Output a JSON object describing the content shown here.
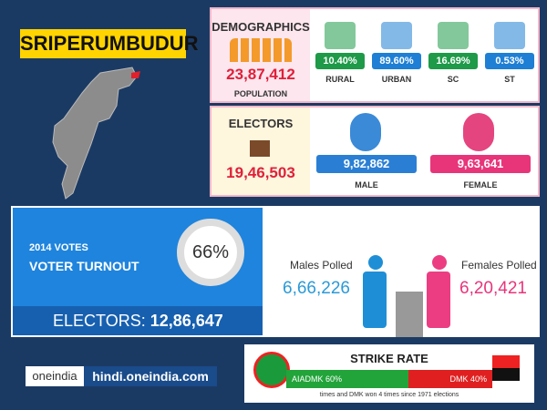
{
  "title": "SRIPERUMBUDUR",
  "demographics": {
    "title": "DEMOGRAPHICS",
    "population": "23,87,412",
    "population_label": "POPULATION",
    "items": [
      {
        "value": "10.40%",
        "label": "RURAL"
      },
      {
        "value": "89.60%",
        "label": "URBAN"
      },
      {
        "value": "16.69%",
        "label": "SC"
      },
      {
        "value": "0.53%",
        "label": "ST"
      }
    ]
  },
  "electors": {
    "title": "ELECTORS",
    "total": "19,46,503",
    "male": {
      "value": "9,82,862",
      "label": "MALE"
    },
    "female": {
      "value": "9,63,641",
      "label": "FEMALE"
    }
  },
  "votes": {
    "year_label": "2014 VOTES",
    "title": "VOTER TURNOUT",
    "turnout": "66%",
    "electors_label": "ELECTORS:",
    "electors_value": "12,86,647"
  },
  "polled": {
    "males_label": "Males Polled",
    "males_value": "6,66,226",
    "females_label": "Females Polled",
    "females_value": "6,20,421"
  },
  "strike_rate": {
    "title": "STRIKE RATE",
    "aiadmk": "AIADMK 60%",
    "dmk": "DMK 40%",
    "footnote": "times and DMK won 4 times since 1971 elections"
  },
  "branding": {
    "logo": "oneindia",
    "site": "hindi.oneindia.com"
  }
}
